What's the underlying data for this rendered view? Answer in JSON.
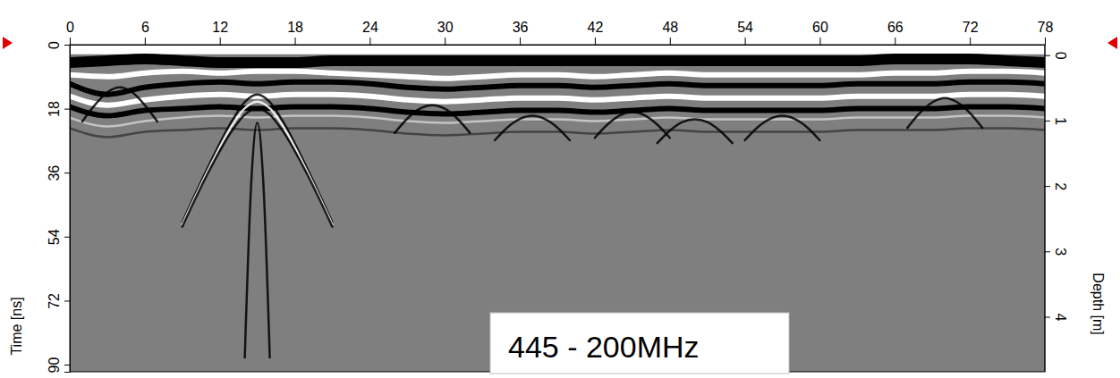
{
  "chart_data": {
    "type": "line",
    "ylabel": "Time [ns]",
    "y2label": "Depth [m]",
    "annotation": "445 - 200MHz",
    "xlim": [
      0,
      78
    ],
    "xticks": [
      0,
      6,
      12,
      18,
      24,
      30,
      36,
      42,
      48,
      54,
      60,
      66,
      72,
      78
    ],
    "ylim": [
      0,
      92
    ],
    "yticks": [
      0,
      18,
      36,
      54,
      72,
      90
    ],
    "y2lim": [
      -0.16,
      4.84
    ],
    "y2ticks": [
      0,
      1,
      2,
      3,
      4
    ],
    "series": [
      {
        "color": "#ffffff",
        "line_style": "thick",
        "x": [
          0,
          78
        ],
        "values": [
          1.2,
          1.2
        ]
      },
      {
        "color": "#000000",
        "line_style": "thick",
        "x": [
          0,
          3,
          6,
          9,
          12,
          15,
          18,
          21,
          24,
          27,
          30,
          33,
          36,
          39,
          42,
          45,
          48,
          51,
          54,
          57,
          60,
          63,
          66,
          69,
          72,
          75,
          78
        ],
        "values": [
          5,
          4.5,
          4,
          4.5,
          5,
          5,
          5,
          4.5,
          4.5,
          4.5,
          4.5,
          4.5,
          4.5,
          4.5,
          4.5,
          4.5,
          4.5,
          4.5,
          4.5,
          4.5,
          4.5,
          4.5,
          4,
          4,
          4,
          4.5,
          5
        ]
      },
      {
        "color": "#ffffff",
        "line_style": "medium",
        "x": [
          0,
          3,
          6,
          9,
          12,
          15,
          18,
          21,
          24,
          27,
          30,
          33,
          36,
          39,
          42,
          45,
          48,
          51,
          54,
          57,
          60,
          63,
          66,
          69,
          72,
          75,
          78
        ],
        "values": [
          8.5,
          9,
          8,
          7.5,
          8,
          7.5,
          7.5,
          8,
          8.5,
          9,
          9.5,
          9,
          8.5,
          8.5,
          9,
          8.5,
          8,
          8.5,
          8.5,
          8.5,
          8.5,
          8.5,
          8,
          8,
          7.5,
          7.5,
          8
        ]
      },
      {
        "color": "#000000",
        "line_style": "medium",
        "x": [
          0,
          3,
          6,
          9,
          12,
          15,
          18,
          21,
          24,
          27,
          30,
          33,
          36,
          39,
          42,
          45,
          48,
          51,
          54,
          57,
          60,
          63,
          66,
          69,
          72,
          75,
          78
        ],
        "values": [
          11,
          14,
          12,
          11,
          10.5,
          11,
          10.5,
          10.5,
          11,
          12,
          12.5,
          12,
          11.5,
          11.5,
          12,
          11.5,
          11,
          11.5,
          11.5,
          11.5,
          11.5,
          11,
          11,
          11,
          10.5,
          10.5,
          11
        ]
      },
      {
        "color": "#ffffff",
        "line_style": "medium",
        "x": [
          0,
          3,
          6,
          9,
          12,
          15,
          18,
          21,
          24,
          27,
          30,
          33,
          36,
          39,
          42,
          45,
          48,
          51,
          54,
          57,
          60,
          63,
          66,
          69,
          72,
          75,
          78
        ],
        "values": [
          14.5,
          17,
          15.5,
          14.5,
          14,
          14.5,
          14,
          14,
          14.5,
          15.5,
          16,
          15.5,
          15,
          15,
          15.5,
          15,
          14.5,
          15,
          15,
          15,
          15,
          14.5,
          14.5,
          14.5,
          14,
          14,
          14.5
        ]
      },
      {
        "color": "#000000",
        "line_style": "medium",
        "x": [
          0,
          3,
          6,
          9,
          12,
          15,
          18,
          21,
          24,
          27,
          30,
          33,
          36,
          39,
          42,
          45,
          48,
          51,
          54,
          57,
          60,
          63,
          66,
          69,
          72,
          75,
          78
        ],
        "values": [
          17.5,
          20,
          18.5,
          18,
          17.5,
          18,
          17.5,
          17.5,
          18,
          19,
          19.5,
          19,
          18.5,
          18.5,
          19,
          18.5,
          18,
          18.5,
          18.5,
          18.5,
          18.5,
          18,
          18,
          18,
          17.5,
          17.5,
          18
        ]
      },
      {
        "color": "#d0d0d0",
        "line_style": "thin",
        "x": [
          0,
          3,
          6,
          9,
          12,
          15,
          18,
          21,
          24,
          27,
          30,
          33,
          36,
          39,
          42,
          45,
          48,
          51,
          54,
          57,
          60,
          63,
          66,
          69,
          72,
          75,
          78
        ],
        "values": [
          20.5,
          23,
          21.5,
          20.5,
          20,
          20.5,
          20,
          20,
          20.5,
          21.5,
          22,
          21.5,
          21,
          21,
          21.5,
          21,
          20.5,
          21,
          21,
          21,
          21,
          20.5,
          20.5,
          20.5,
          20,
          20,
          20.5
        ]
      },
      {
        "color": "#3a3a3a",
        "line_style": "thin",
        "x": [
          0,
          3,
          6,
          9,
          12,
          15,
          18,
          21,
          24,
          27,
          30,
          33,
          36,
          39,
          42,
          45,
          48,
          51,
          54,
          57,
          60,
          63,
          66,
          69,
          72,
          75,
          78
        ],
        "values": [
          23.5,
          26,
          24.5,
          24,
          23.5,
          24,
          23.5,
          23.5,
          24,
          25,
          25.5,
          25,
          24.5,
          24.5,
          25,
          24.5,
          24,
          24.5,
          24.5,
          24.5,
          24.5,
          24,
          24,
          24,
          23.5,
          23.5,
          24
        ]
      },
      {
        "color": "#000000",
        "line_style": "thin",
        "x": [
          9,
          11,
          13,
          14,
          15,
          16,
          17,
          19,
          21
        ],
        "values": [
          50,
          34.9,
          21.3,
          16.1,
          14,
          16.1,
          21.3,
          34.9,
          50
        ]
      },
      {
        "color": "#ffffff",
        "line_style": "thin",
        "x": [
          9,
          11,
          13,
          14,
          15,
          16,
          17,
          19,
          21
        ],
        "values": [
          50.6,
          35.8,
          22.6,
          17.9,
          16,
          17.9,
          22.6,
          35.8,
          50.6
        ]
      },
      {
        "color": "#000000",
        "line_style": "thin",
        "x": [
          9,
          11,
          13,
          14,
          15,
          16,
          17,
          19,
          21
        ],
        "values": [
          51.2,
          36.5,
          24.1,
          19.7,
          18,
          19.7,
          24.1,
          36.5,
          51.2
        ]
      },
      {
        "color": "#000000",
        "line_style": "thin",
        "x": [
          14,
          14.5,
          15,
          15.5,
          16
        ],
        "values": [
          88,
          40,
          22,
          40,
          88
        ]
      },
      {
        "color": "#000000",
        "line_style": "thin",
        "x": [
          1,
          2,
          3,
          4,
          5,
          6,
          7
        ],
        "values": [
          21.6,
          17,
          13.4,
          12,
          13.4,
          17,
          21.6
        ]
      },
      {
        "color": "#000000",
        "line_style": "thin",
        "x": [
          26,
          27,
          28,
          29,
          30,
          31,
          32
        ],
        "values": [
          24.8,
          20.8,
          18,
          17,
          18,
          20.8,
          24.8
        ]
      },
      {
        "color": "#000000",
        "line_style": "thin",
        "x": [
          34,
          35,
          36,
          37,
          38,
          39,
          40
        ],
        "values": [
          26.9,
          23.3,
          20.9,
          20,
          20.9,
          23.3,
          26.9
        ]
      },
      {
        "color": "#000000",
        "line_style": "thin",
        "x": [
          42,
          43,
          44,
          45,
          46,
          47,
          48
        ],
        "values": [
          26.2,
          22.5,
          19.9,
          19,
          19.9,
          22.5,
          26.2
        ]
      },
      {
        "color": "#000000",
        "line_style": "thin",
        "x": [
          47,
          48,
          49,
          50,
          51,
          52,
          53
        ],
        "values": [
          27.7,
          24.2,
          21.8,
          21,
          21.8,
          24.2,
          27.7
        ]
      },
      {
        "color": "#000000",
        "line_style": "thin",
        "x": [
          54,
          55,
          56,
          57,
          58,
          59,
          60
        ],
        "values": [
          26.9,
          23.3,
          20.9,
          20,
          20.9,
          23.3,
          26.9
        ]
      },
      {
        "color": "#000000",
        "line_style": "thin",
        "x": [
          67,
          68,
          69,
          70,
          71,
          72,
          73
        ],
        "values": [
          23.4,
          19.2,
          16.2,
          15,
          16.2,
          19.2,
          23.4
        ]
      }
    ]
  }
}
